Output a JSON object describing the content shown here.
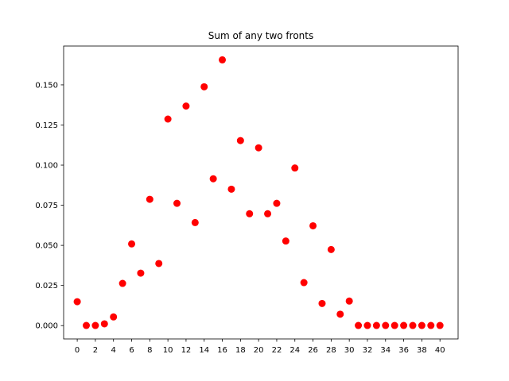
{
  "chart_data": {
    "type": "scatter",
    "title": "Sum of any two fronts",
    "xlabel": "",
    "ylabel": "",
    "xlim": [
      -1.5,
      42.0
    ],
    "ylim": [
      -0.0083,
      0.1742
    ],
    "xticks": [
      0,
      2,
      4,
      6,
      8,
      10,
      12,
      14,
      16,
      18,
      20,
      22,
      24,
      26,
      28,
      30,
      32,
      34,
      36,
      38,
      40
    ],
    "yticks": [
      0.0,
      0.025,
      0.05,
      0.075,
      0.1,
      0.125,
      0.15
    ],
    "ytick_labels": [
      "0.000",
      "0.025",
      "0.050",
      "0.075",
      "0.100",
      "0.125",
      "0.150"
    ],
    "grid": false,
    "marker_color": "#ff0000",
    "x": [
      0,
      1,
      2,
      3,
      4,
      5,
      6,
      7,
      8,
      9,
      10,
      11,
      12,
      13,
      14,
      15,
      16,
      17,
      18,
      19,
      20,
      21,
      22,
      23,
      24,
      25,
      26,
      27,
      28,
      29,
      30,
      31,
      32,
      33,
      34,
      35,
      36,
      37,
      38,
      39,
      40
    ],
    "y": [
      0.0149,
      0.0001,
      0.0001,
      0.0011,
      0.0054,
      0.0263,
      0.0509,
      0.0327,
      0.0787,
      0.0387,
      0.1287,
      0.0762,
      0.1368,
      0.0642,
      0.1488,
      0.0915,
      0.1656,
      0.085,
      0.1153,
      0.0697,
      0.1108,
      0.0697,
      0.0762,
      0.0527,
      0.0982,
      0.0268,
      0.0622,
      0.0138,
      0.0474,
      0.0071,
      0.0153,
      0.0001,
      0.0001,
      0.0001,
      0.0001,
      0.0001,
      0.0001,
      0.0001,
      0.0001,
      0.0001,
      0.0001
    ]
  }
}
